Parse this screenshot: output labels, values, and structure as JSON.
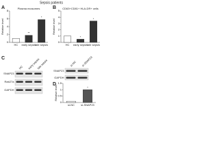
{
  "title": "Sepsis patients",
  "chart_data": [
    {
      "type": "bar",
      "label": "A",
      "title": "Plasma exosomes",
      "y_label": "Relative level",
      "categories": [
        "HC",
        "early sepsis",
        "late sepsis"
      ],
      "values": [
        1,
        1.8,
        5.8
      ],
      "markers": [
        null,
        "**",
        "*"
      ],
      "color": "#333333",
      "ylim": [
        0,
        8
      ],
      "yticks": [
        0,
        2,
        4,
        6,
        8
      ]
    },
    {
      "type": "bar",
      "label": "B",
      "title": "CD63+CD81+ HLA-DR+ cells",
      "y_label": "Relative level",
      "categories": [
        "HC",
        "early sepsis",
        "late sepsis"
      ],
      "values": [
        1,
        0.5,
        3.4
      ],
      "markers": [
        null,
        "*",
        "*"
      ],
      "color": "#333333",
      "ylim": [
        0,
        5
      ],
      "yticks": [
        0,
        1,
        2,
        3,
        4,
        5
      ]
    },
    {
      "type": "bar",
      "label": "D",
      "title": "",
      "y_label": "Relative level",
      "categories": [
        "si-NC",
        "si-SNAP23"
      ],
      "values": [
        0.1,
        1.0
      ],
      "markers": [
        null,
        "*"
      ],
      "color": "#555555",
      "ylim": [
        0,
        1.5
      ],
      "yticks": [
        0,
        0.5,
        1,
        1.5
      ]
    }
  ],
  "blots": [
    {
      "label": "C",
      "columns": [
        "HC",
        "early sepsis",
        "late sepsis"
      ],
      "rows": [
        "SNAP23",
        "Rab27a",
        "GAPDH"
      ]
    },
    {
      "label": "D",
      "columns": [
        "si-NC",
        "si-SNAP23"
      ],
      "rows": [
        "SNAP23",
        "GAPDH"
      ]
    }
  ]
}
